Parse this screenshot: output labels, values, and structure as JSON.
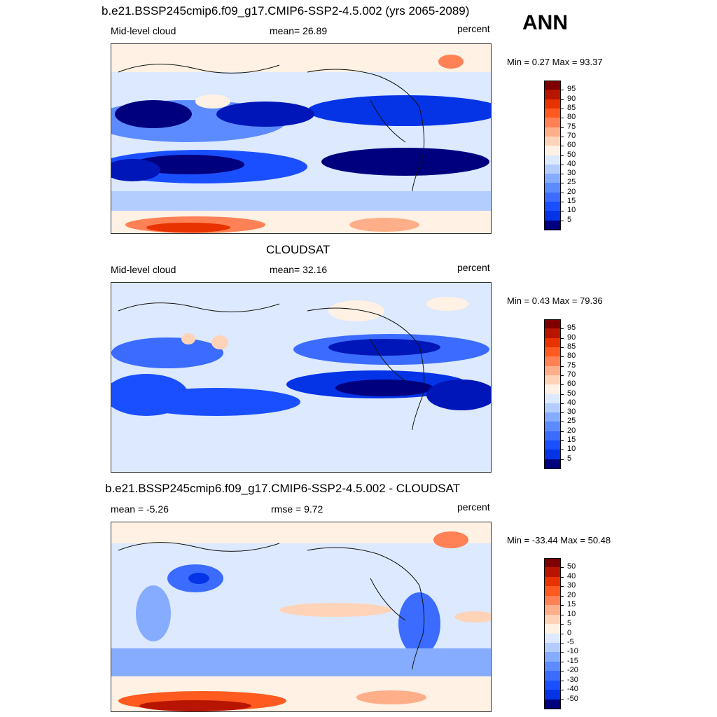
{
  "season": "ANN",
  "panels": [
    {
      "title": "b.e21.BSSP245cmip6.f09_g17.CMIP6-SSP2-4.5.002 (yrs 2065-2089)",
      "left": "Mid-level cloud",
      "center": "mean=  26.89",
      "right": "percent",
      "minmax": "Min =   0.27 Max =  93.37",
      "colorbar": [
        "95",
        "90",
        "85",
        "80",
        "75",
        "70",
        "60",
        "50",
        "40",
        "30",
        "25",
        "20",
        "15",
        "10",
        "5"
      ]
    },
    {
      "title": "CLOUDSAT",
      "left": "Mid-level cloud",
      "center": "mean=  32.16",
      "right": "percent",
      "minmax": "Min =   0.43 Max =  79.36",
      "colorbar": [
        "95",
        "90",
        "85",
        "80",
        "75",
        "70",
        "60",
        "50",
        "40",
        "30",
        "25",
        "20",
        "15",
        "10",
        "5"
      ]
    },
    {
      "title": "b.e21.BSSP245cmip6.f09_g17.CMIP6-SSP2-4.5.002 - CLOUDSAT",
      "left": "mean =  -5.26",
      "center": "rmse =   9.72",
      "right": "percent",
      "minmax": "Min = -33.44 Max =  50.48",
      "colorbar": [
        "50",
        "40",
        "30",
        "20",
        "15",
        "10",
        "5",
        "0",
        "-5",
        "-10",
        "-15",
        "-20",
        "-30",
        "-40",
        "-50"
      ]
    }
  ],
  "colors": {
    "scale": [
      "#00007f",
      "#0016b8",
      "#0533e6",
      "#1a4fff",
      "#3b6cff",
      "#5c8bff",
      "#86acff",
      "#b4cdff",
      "#dce9ff",
      "#fff1e3",
      "#ffd3b8",
      "#ffae8a",
      "#ff8155",
      "#ff5a1f",
      "#e83200",
      "#b81500",
      "#7f0000"
    ]
  }
}
